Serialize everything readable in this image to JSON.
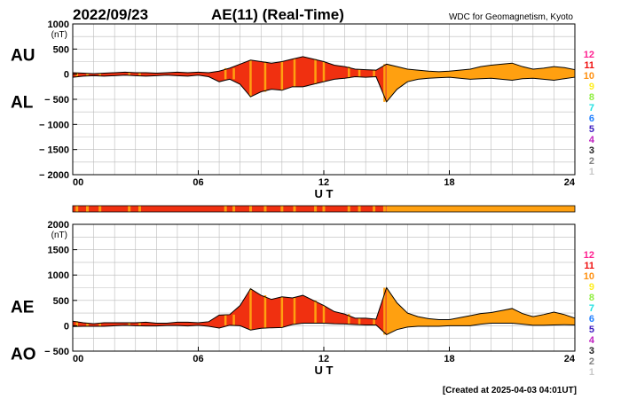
{
  "header": {
    "date": "2022/09/23",
    "title": "AE(11) (Real-Time)",
    "source": "WDC for Geomagnetism, Kyoto"
  },
  "footer": {
    "created": "[Created at 2025-04-03 04:01UT]"
  },
  "colors": {
    "fill_primary": "#f03010",
    "fill_secondary": "#ffa010",
    "outline": "#000000",
    "grid": "#bbbbbb"
  },
  "chart_data": [
    {
      "type": "area",
      "name": "au-al",
      "left_labels": [
        "AU",
        "AL"
      ],
      "xlabel": "U T",
      "y_unit": "(nT)",
      "xlim": [
        0,
        24
      ],
      "ylim": [
        -2000,
        1000
      ],
      "x_ticks": [
        "00",
        "06",
        "12",
        "18",
        "24"
      ],
      "y_ticks": [
        {
          "value": 1000,
          "label": "1000"
        },
        {
          "value": 500,
          "label": "500"
        },
        {
          "value": 0,
          "label": "0"
        },
        {
          "value": -500,
          "label": "− 500"
        },
        {
          "value": -1000,
          "label": "− 1000"
        },
        {
          "value": -1500,
          "label": "− 1500"
        },
        {
          "value": -2000,
          "label": "− 2000"
        }
      ],
      "upper_series": {
        "name": "AU",
        "x": [
          0,
          0.5,
          1,
          1.5,
          2,
          2.5,
          3,
          3.5,
          4,
          4.5,
          5,
          5.5,
          6,
          6.5,
          7,
          7.5,
          8,
          8.5,
          9,
          9.5,
          10,
          10.5,
          11,
          11.5,
          12,
          12.5,
          13,
          13.5,
          14,
          14.5,
          15,
          15.5,
          16,
          16.5,
          17,
          17.5,
          18,
          18.5,
          19,
          19.5,
          20,
          20.5,
          21,
          21.5,
          22,
          22.5,
          23,
          23.5,
          24
        ],
        "values": [
          30,
          20,
          10,
          20,
          30,
          40,
          30,
          30,
          20,
          30,
          40,
          30,
          40,
          30,
          60,
          120,
          200,
          280,
          250,
          220,
          250,
          300,
          350,
          300,
          250,
          180,
          150,
          100,
          90,
          80,
          200,
          150,
          100,
          80,
          60,
          50,
          60,
          80,
          100,
          150,
          180,
          200,
          220,
          150,
          100,
          120,
          150,
          130,
          90
        ]
      },
      "lower_series": {
        "name": "AL",
        "x": [
          0,
          0.5,
          1,
          1.5,
          2,
          2.5,
          3,
          3.5,
          4,
          4.5,
          5,
          5.5,
          6,
          6.5,
          7,
          7.5,
          8,
          8.5,
          9,
          9.5,
          10,
          10.5,
          11,
          11.5,
          12,
          12.5,
          13,
          13.5,
          14,
          14.5,
          15,
          15.5,
          16,
          16.5,
          17,
          17.5,
          18,
          18.5,
          19,
          19.5,
          20,
          20.5,
          21,
          21.5,
          22,
          22.5,
          23,
          23.5,
          24
        ],
        "values": [
          -60,
          -40,
          -30,
          -40,
          -30,
          -20,
          -30,
          -40,
          -30,
          -20,
          -30,
          -40,
          -20,
          -50,
          -150,
          -100,
          -200,
          -450,
          -350,
          -300,
          -320,
          -250,
          -250,
          -200,
          -150,
          -100,
          -80,
          -50,
          -60,
          -50,
          -550,
          -300,
          -150,
          -100,
          -80,
          -70,
          -60,
          -80,
          -100,
          -90,
          -80,
          -100,
          -120,
          -90,
          -80,
          -100,
          -120,
          -90,
          -60
        ]
      },
      "level_scale": [
        "12",
        "11",
        "10",
        "9",
        "8",
        "7",
        "6",
        "5",
        "4",
        "3",
        "2",
        "1"
      ],
      "level_colors": [
        "#ff2090",
        "#f01010",
        "#ff9010",
        "#ffee20",
        "#90ee40",
        "#20e0e0",
        "#2080ff",
        "#4020c0",
        "#c020c0",
        "#202020",
        "#808080",
        "#c8c8c8"
      ]
    },
    {
      "type": "bar",
      "name": "station-status-strip",
      "xlim": [
        0,
        24
      ],
      "segments": [
        {
          "start": 0,
          "end": 15,
          "level": "11"
        },
        {
          "start": 15,
          "end": 24,
          "level": "10"
        }
      ],
      "secondary_marks": [
        0.2,
        0.7,
        1.3,
        2.7,
        3.2,
        7.3,
        7.7,
        8.5,
        9.2,
        10.0,
        10.6,
        11.6,
        12.0,
        13.2,
        13.7,
        14.4,
        14.9
      ]
    },
    {
      "type": "area",
      "name": "ae-ao",
      "left_labels": [
        "AE",
        "AO"
      ],
      "xlabel": "U T",
      "y_unit": "(nT)",
      "xlim": [
        0,
        24
      ],
      "ylim": [
        -500,
        2000
      ],
      "x_ticks": [
        "00",
        "06",
        "12",
        "18",
        "24"
      ],
      "y_ticks": [
        {
          "value": 2000,
          "label": "2000"
        },
        {
          "value": 1500,
          "label": "1500"
        },
        {
          "value": 1000,
          "label": "1000"
        },
        {
          "value": 500,
          "label": "500"
        },
        {
          "value": 0,
          "label": "0"
        },
        {
          "value": -500,
          "label": "− 500"
        }
      ],
      "upper_series": {
        "name": "AE",
        "x": [
          0,
          0.5,
          1,
          1.5,
          2,
          2.5,
          3,
          3.5,
          4,
          4.5,
          5,
          5.5,
          6,
          6.5,
          7,
          7.5,
          8,
          8.5,
          9,
          9.5,
          10,
          10.5,
          11,
          11.5,
          12,
          12.5,
          13,
          13.5,
          14,
          14.5,
          15,
          15.5,
          16,
          16.5,
          17,
          17.5,
          18,
          18.5,
          19,
          19.5,
          20,
          20.5,
          21,
          21.5,
          22,
          22.5,
          23,
          23.5,
          24
        ],
        "values": [
          90,
          60,
          40,
          60,
          60,
          60,
          60,
          70,
          50,
          50,
          70,
          70,
          60,
          80,
          210,
          220,
          400,
          730,
          600,
          520,
          570,
          550,
          600,
          500,
          400,
          280,
          230,
          150,
          150,
          130,
          750,
          450,
          250,
          180,
          140,
          120,
          120,
          160,
          200,
          240,
          260,
          300,
          340,
          240,
          180,
          220,
          270,
          220,
          150
        ]
      },
      "lower_series": {
        "name": "AO",
        "x": [
          0,
          0.5,
          1,
          1.5,
          2,
          2.5,
          3,
          3.5,
          4,
          4.5,
          5,
          5.5,
          6,
          6.5,
          7,
          7.5,
          8,
          8.5,
          9,
          9.5,
          10,
          10.5,
          11,
          11.5,
          12,
          12.5,
          13,
          13.5,
          14,
          14.5,
          15,
          15.5,
          16,
          16.5,
          17,
          17.5,
          18,
          18.5,
          19,
          19.5,
          20,
          20.5,
          21,
          21.5,
          22,
          22.5,
          23,
          23.5,
          24
        ],
        "values": [
          -15,
          -10,
          -10,
          -10,
          0,
          10,
          0,
          -5,
          -5,
          5,
          5,
          -5,
          10,
          -10,
          -45,
          10,
          0,
          -85,
          -50,
          -40,
          -35,
          25,
          50,
          50,
          50,
          40,
          35,
          25,
          15,
          15,
          -175,
          -75,
          -25,
          -10,
          -10,
          -10,
          0,
          0,
          0,
          30,
          50,
          50,
          50,
          30,
          10,
          10,
          15,
          20,
          15
        ]
      },
      "level_scale": [
        "12",
        "11",
        "10",
        "9",
        "8",
        "7",
        "6",
        "5",
        "4",
        "3",
        "2",
        "1"
      ],
      "level_colors": [
        "#ff2090",
        "#f01010",
        "#ff9010",
        "#ffee20",
        "#90ee40",
        "#20e0e0",
        "#2080ff",
        "#4020c0",
        "#c020c0",
        "#202020",
        "#808080",
        "#c8c8c8"
      ]
    }
  ]
}
